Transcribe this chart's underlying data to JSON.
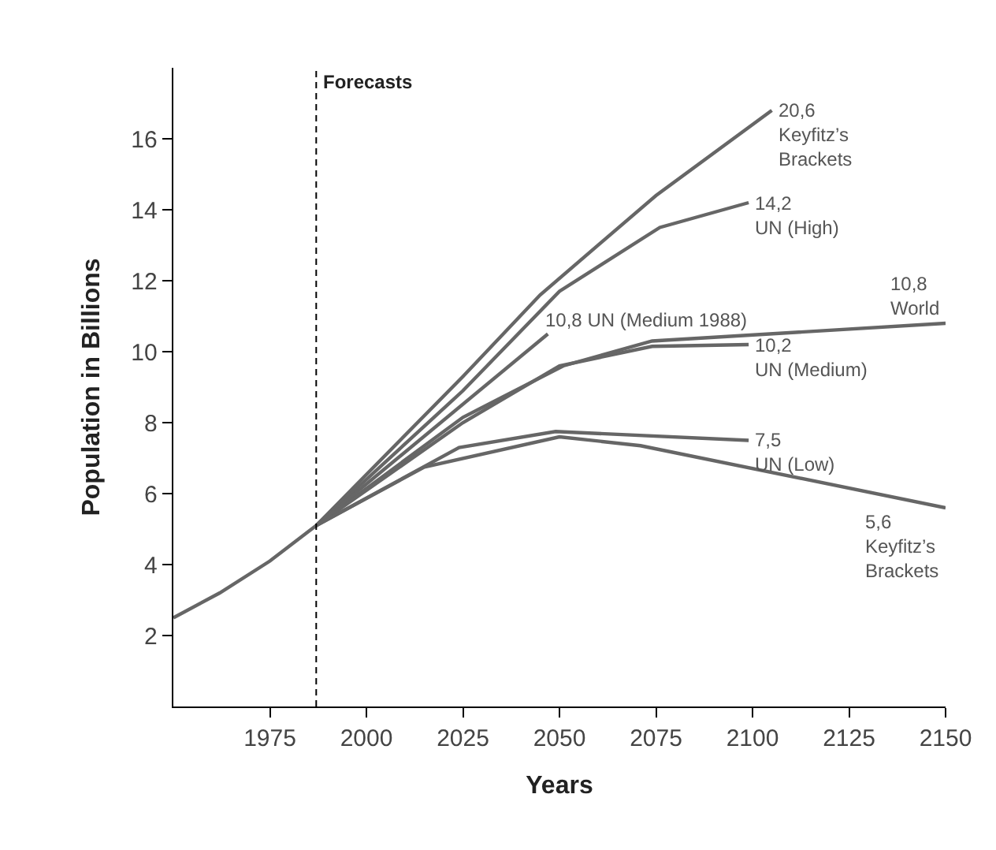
{
  "chart_data": {
    "type": "line",
    "xlabel": "Years",
    "ylabel": "Population in Billions",
    "xlim": [
      1950,
      2150
    ],
    "xticks": [
      1975,
      2000,
      2025,
      2050,
      2075,
      2100,
      2125,
      2150
    ],
    "ylim": [
      0,
      18
    ],
    "yticks": [
      2,
      4,
      6,
      8,
      10,
      12,
      14,
      16
    ],
    "series": [
      {
        "color": "#666666",
        "x": [
          1950,
          1962,
          1975,
          1987,
          2025,
          2051,
          2074,
          2150
        ],
        "values": [
          2.5,
          3.2,
          4.1,
          5.1,
          8.15,
          9.6,
          10.3,
          10.8
        ]
      },
      {
        "color": "#666666",
        "x": [
          1987,
          2025,
          2045,
          2075,
          2105
        ],
        "values": [
          5.1,
          9.3,
          11.6,
          14.4,
          16.8
        ]
      },
      {
        "color": "#666666",
        "x": [
          1987,
          2025,
          2050,
          2076,
          2099
        ],
        "values": [
          5.1,
          8.9,
          11.7,
          13.5,
          14.2
        ]
      },
      {
        "color": "#666666",
        "x": [
          1987,
          2047
        ],
        "values": [
          5.1,
          10.5
        ]
      },
      {
        "color": "#666666",
        "x": [
          1987,
          2025,
          2050,
          2074,
          2099
        ],
        "values": [
          5.1,
          8.0,
          9.6,
          10.15,
          10.2
        ]
      },
      {
        "color": "#666666",
        "x": [
          1987,
          2024,
          2049,
          2099
        ],
        "values": [
          5.1,
          7.3,
          7.75,
          7.5
        ]
      },
      {
        "color": "#666666",
        "x": [
          1987,
          2015,
          2050,
          2071,
          2150
        ],
        "values": [
          5.1,
          6.75,
          7.6,
          7.35,
          5.6
        ]
      }
    ],
    "ref_lines": [
      {
        "axis": "x",
        "value": 1987,
        "label": "Forecasts",
        "color": "#000000",
        "line_style": "dashed"
      }
    ],
    "annotations": [
      {
        "text": "20,6\nKeyfitz’s\nBrackets",
        "x": 2105,
        "y": 16.8
      },
      {
        "text": "14,2\nUN (High)",
        "x": 2099,
        "y": 14.2
      },
      {
        "text": "10,8 UN (Medium 1988)",
        "x": 2047,
        "y": 10.5
      },
      {
        "text": "10,8\nWorld",
        "x": 2150,
        "y": 10.8
      },
      {
        "text": "10,2\nUN (Medium)",
        "x": 2099,
        "y": 10.2
      },
      {
        "text": "7,5\nUN (Low)",
        "x": 2099,
        "y": 7.5
      },
      {
        "text": "5,6\nKeyfitz’s\nBrackets",
        "x": 2150,
        "y": 5.6
      }
    ]
  }
}
